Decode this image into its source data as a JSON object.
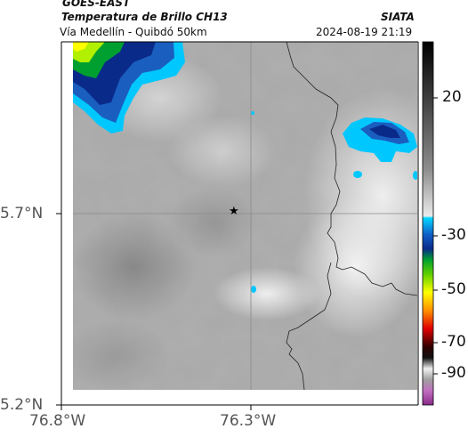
{
  "header": {
    "satellite": "GOES-EAST",
    "product": "Temperatura de Brillo CH13",
    "route": "Vía Medellín - Quibdó 50km",
    "agency": "SIATA",
    "datetime": "2024-08-19 21:19"
  },
  "axes": {
    "lat_ticks": [
      "5.7°N",
      "5.2°N"
    ],
    "lon_ticks": [
      "76.8°W",
      "76.3°W"
    ]
  },
  "colorbar": {
    "ticks": [
      "20",
      "-30",
      "-50",
      "-70",
      "-90"
    ],
    "colors": {
      "black": "#000000",
      "gray_dark": "#6a6a6a",
      "gray_light": "#e6e6e6",
      "cyan": "#00c8ff",
      "blue": "#0a2a8a",
      "green": "#00b000",
      "yellow": "#ffff00",
      "red": "#e00000",
      "magenta": "#c060c0"
    }
  },
  "map": {
    "marker_symbol": "★",
    "marker_name": "star-marker"
  }
}
